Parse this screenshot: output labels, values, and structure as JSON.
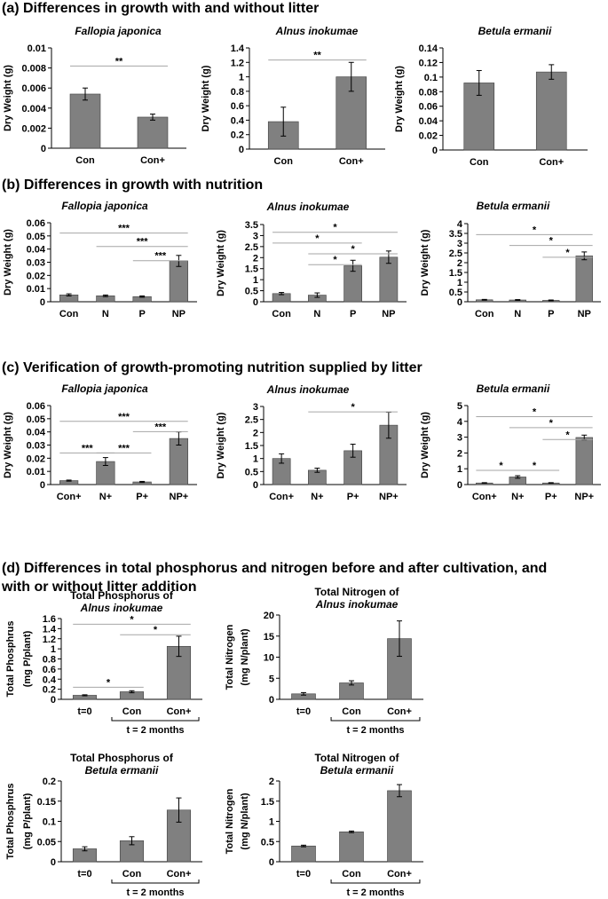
{
  "sections": {
    "a": "(a) Differences in growth with and without litter",
    "b": "(b) Differences in growth with nutrition",
    "c": "(c) Verification of growth-promoting nutrition supplied by litter",
    "d1": "(d) Differences in total phosphorus and nitrogen before and after cultivation, and",
    "d2": "with or without litter addition"
  },
  "colors": {
    "bar": "#808080",
    "bar_edge": "#404040",
    "axis": "#000000",
    "sig_line": "#a6a6a6"
  },
  "chart_data": [
    {
      "id": "a1",
      "type": "bar",
      "title": "Fallopia japonica",
      "title_italic": true,
      "ylabel": "Dry Weight (g)",
      "categories": [
        "Con",
        "Con+"
      ],
      "values": [
        0.0054,
        0.0031
      ],
      "errors": [
        0.0006,
        0.0003
      ],
      "ylim": [
        0,
        0.01
      ],
      "yticks": [
        "0",
        "0.002",
        "0.004",
        "0.006",
        "0.008",
        "0.01"
      ],
      "sig": [
        {
          "from": 0,
          "to": 1,
          "label": "**",
          "level": 0.82
        }
      ]
    },
    {
      "id": "a2",
      "type": "bar",
      "title": "Alnus inokumae",
      "title_italic": true,
      "ylabel": "Dry Weight (g)",
      "categories": [
        "Con",
        "Con+"
      ],
      "values": [
        0.38,
        1.0
      ],
      "errors": [
        0.2,
        0.2
      ],
      "ylim": [
        0,
        1.4
      ],
      "yticks": [
        "0",
        "0.2",
        "0.4",
        "0.6",
        "0.8",
        "1",
        "1.2",
        "1.4"
      ],
      "sig": [
        {
          "from": 0,
          "to": 1,
          "label": "**",
          "level": 0.88
        }
      ]
    },
    {
      "id": "a3",
      "type": "bar",
      "title": "Betula ermanii",
      "title_italic": true,
      "ylabel": "Dry Weight (g)",
      "categories": [
        "Con",
        "Con+"
      ],
      "values": [
        0.092,
        0.107
      ],
      "errors": [
        0.017,
        0.01
      ],
      "ylim": [
        0,
        0.14
      ],
      "yticks": [
        "0",
        "0.02",
        "0.04",
        "0.06",
        "0.08",
        "0.1",
        "0.12",
        "0.14"
      ],
      "sig": []
    },
    {
      "id": "b1",
      "type": "bar",
      "title": "Fallopia japonica",
      "title_italic": true,
      "ylabel": "Dry Weight (g)",
      "categories": [
        "Con",
        "N",
        "P",
        "NP"
      ],
      "values": [
        0.0052,
        0.0045,
        0.0039,
        0.031
      ],
      "errors": [
        0.0008,
        0.0006,
        0.0005,
        0.0042
      ],
      "ylim": [
        0,
        0.06
      ],
      "yticks": [
        "0",
        "0.01",
        "0.02",
        "0.03",
        "0.04",
        "0.05",
        "0.06"
      ],
      "sig": [
        {
          "from": 0,
          "to": 3,
          "label": "***",
          "level": 0.87
        },
        {
          "from": 1,
          "to": 3,
          "label": "***",
          "level": 0.7
        },
        {
          "from": 2,
          "to": 3,
          "label": "***",
          "level": 0.52
        }
      ]
    },
    {
      "id": "b2",
      "type": "bar",
      "title": "Alnus inokumae",
      "title_italic": true,
      "ylabel": "Dry Weight (g)",
      "categories": [
        "Con",
        "N",
        "P",
        "NP"
      ],
      "values": [
        0.37,
        0.3,
        1.63,
        2.02
      ],
      "errors": [
        0.05,
        0.1,
        0.25,
        0.28
      ],
      "ylim": [
        0,
        3.5
      ],
      "yticks": [
        "0",
        "0.5",
        "1",
        "1.5",
        "2",
        "2.5",
        "3",
        "3.5"
      ],
      "sig": [
        {
          "from": 0,
          "to": 3,
          "label": "*",
          "level": 0.9
        },
        {
          "from": 0,
          "to": 2,
          "label": "*",
          "level": 0.76
        },
        {
          "from": 1,
          "to": 3,
          "label": "*",
          "level": 0.62
        },
        {
          "from": 1,
          "to": 2,
          "label": "*",
          "level": 0.48
        }
      ]
    },
    {
      "id": "b3",
      "type": "bar",
      "title": "Betula ermanii",
      "title_italic": true,
      "ylabel": "Dry Weight (g)",
      "categories": [
        "Con",
        "N",
        "P",
        "NP"
      ],
      "values": [
        0.1,
        0.09,
        0.07,
        2.35
      ],
      "errors": [
        0.02,
        0.02,
        0.02,
        0.2
      ],
      "ylim": [
        0,
        4
      ],
      "yticks": [
        "0",
        "0.5",
        "1",
        "1.5",
        "2",
        "2.5",
        "3",
        "3.5",
        "4"
      ],
      "sig": [
        {
          "from": 0,
          "to": 3,
          "label": "*",
          "level": 0.86
        },
        {
          "from": 1,
          "to": 3,
          "label": "*",
          "level": 0.72
        },
        {
          "from": 2,
          "to": 3,
          "label": "*",
          "level": 0.57
        }
      ]
    },
    {
      "id": "c1",
      "type": "bar",
      "title": "Fallopia japonica",
      "title_italic": true,
      "ylabel": "Dry Weight (g)",
      "categories": [
        "Con+",
        "N+",
        "P+",
        "NP+"
      ],
      "values": [
        0.003,
        0.0175,
        0.002,
        0.035
      ],
      "errors": [
        0.0004,
        0.003,
        0.0004,
        0.005
      ],
      "ylim": [
        0,
        0.06
      ],
      "yticks": [
        "0",
        "0.01",
        "0.02",
        "0.03",
        "0.04",
        "0.05",
        "0.06"
      ],
      "sig": [
        {
          "from": 0,
          "to": 3,
          "label": "***",
          "level": 0.8
        },
        {
          "from": 2,
          "to": 3,
          "label": "***",
          "level": 0.67
        },
        {
          "from": 0,
          "to": 1,
          "label": "***",
          "level": 0.4
        },
        {
          "from": 1,
          "to": 2,
          "label": "***",
          "level": 0.4
        }
      ]
    },
    {
      "id": "c2",
      "type": "bar",
      "title": "Alnus inokumae",
      "title_italic": true,
      "ylabel": "Dry Weight (g)",
      "categories": [
        "Con+",
        "N+",
        "P+",
        "NP+"
      ],
      "values": [
        1.0,
        0.55,
        1.3,
        2.28
      ],
      "errors": [
        0.18,
        0.08,
        0.25,
        0.5
      ],
      "ylim": [
        0,
        3
      ],
      "yticks": [
        "0",
        "0.5",
        "1",
        "1.5",
        "2",
        "2.5",
        "3"
      ],
      "sig": [
        {
          "from": 1,
          "to": 3,
          "label": "*",
          "level": 0.93
        }
      ]
    },
    {
      "id": "c3",
      "type": "bar",
      "title": "Betula ermanii",
      "title_italic": true,
      "ylabel": "Dry Weight (g)",
      "categories": [
        "Con+",
        "N+",
        "P+",
        "NP+"
      ],
      "values": [
        0.1,
        0.48,
        0.1,
        2.98
      ],
      "errors": [
        0.02,
        0.08,
        0.02,
        0.15
      ],
      "ylim": [
        0,
        5
      ],
      "yticks": [
        "0",
        "1",
        "2",
        "3",
        "4",
        "5"
      ],
      "sig": [
        {
          "from": 0,
          "to": 3,
          "label": "*",
          "level": 0.86
        },
        {
          "from": 1,
          "to": 3,
          "label": "*",
          "level": 0.72
        },
        {
          "from": 2,
          "to": 3,
          "label": "*",
          "level": 0.57
        },
        {
          "from": 0,
          "to": 1,
          "label": "*",
          "level": 0.18
        },
        {
          "from": 1,
          "to": 2,
          "label": "*",
          "level": 0.18
        }
      ]
    },
    {
      "id": "d1",
      "type": "bar",
      "title_line1": "Total Phosphorus of",
      "title_line2": "Alnus inokumae",
      "ylabel": "Total Phosphrus",
      "ylabel2": "(mg P/plant)",
      "categories": [
        "t=0",
        "Con",
        "Con+"
      ],
      "values": [
        0.08,
        0.15,
        1.05
      ],
      "errors": [
        0.01,
        0.02,
        0.2
      ],
      "ylim": [
        0,
        1.6
      ],
      "yticks": [
        "0",
        "0.2",
        "0.4",
        "0.6",
        "0.8",
        "1",
        "1.2",
        "1.4",
        "1.6"
      ],
      "group_label": "t = 2 months",
      "sig": [
        {
          "from": 0,
          "to": 2,
          "label": "*",
          "level": 0.93
        },
        {
          "from": 1,
          "to": 2,
          "label": "*",
          "level": 0.8
        },
        {
          "from": 0,
          "to": 1,
          "label": "*",
          "level": 0.15
        }
      ]
    },
    {
      "id": "d2",
      "type": "bar",
      "title_line1": "Total Nitrogen of",
      "title_line2": "Alnus inokumae",
      "ylabel": "Total Nitrogen",
      "ylabel2": "(mg N/plant)",
      "categories": [
        "t=0",
        "Con",
        "Con+"
      ],
      "values": [
        1.3,
        3.9,
        14.4
      ],
      "errors": [
        0.3,
        0.5,
        4.2
      ],
      "ylim": [
        0,
        20
      ],
      "yticks": [
        "0",
        "5",
        "10",
        "15",
        "20"
      ],
      "group_label": "t = 2 months",
      "sig": []
    },
    {
      "id": "d3",
      "type": "bar",
      "title_line1": "Total Phosphorus of",
      "title_line2": "Betula ermanii",
      "ylabel": "Total Phosphrus",
      "ylabel2": "(mg P/plant)",
      "categories": [
        "t=0",
        "Con",
        "Con+"
      ],
      "values": [
        0.032,
        0.052,
        0.128
      ],
      "errors": [
        0.005,
        0.01,
        0.03
      ],
      "ylim": [
        0,
        0.2
      ],
      "yticks": [
        "0",
        "0.05",
        "0.1",
        "0.15",
        "0.2"
      ],
      "group_label": "t = 2 months",
      "sig": []
    },
    {
      "id": "d4",
      "type": "bar",
      "title_line1": "Total Nitrogen of",
      "title_line2": "Betula ermanii",
      "ylabel": "Total Nitrogen",
      "ylabel2": "(mg N/plant)",
      "categories": [
        "t=0",
        "Con",
        "Con+"
      ],
      "values": [
        0.39,
        0.74,
        1.76
      ],
      "errors": [
        0.02,
        0.02,
        0.15
      ],
      "ylim": [
        0,
        2
      ],
      "yticks": [
        "0",
        "0.5",
        "1",
        "1.5",
        "2"
      ],
      "group_label": "t = 2 months",
      "sig": []
    }
  ]
}
